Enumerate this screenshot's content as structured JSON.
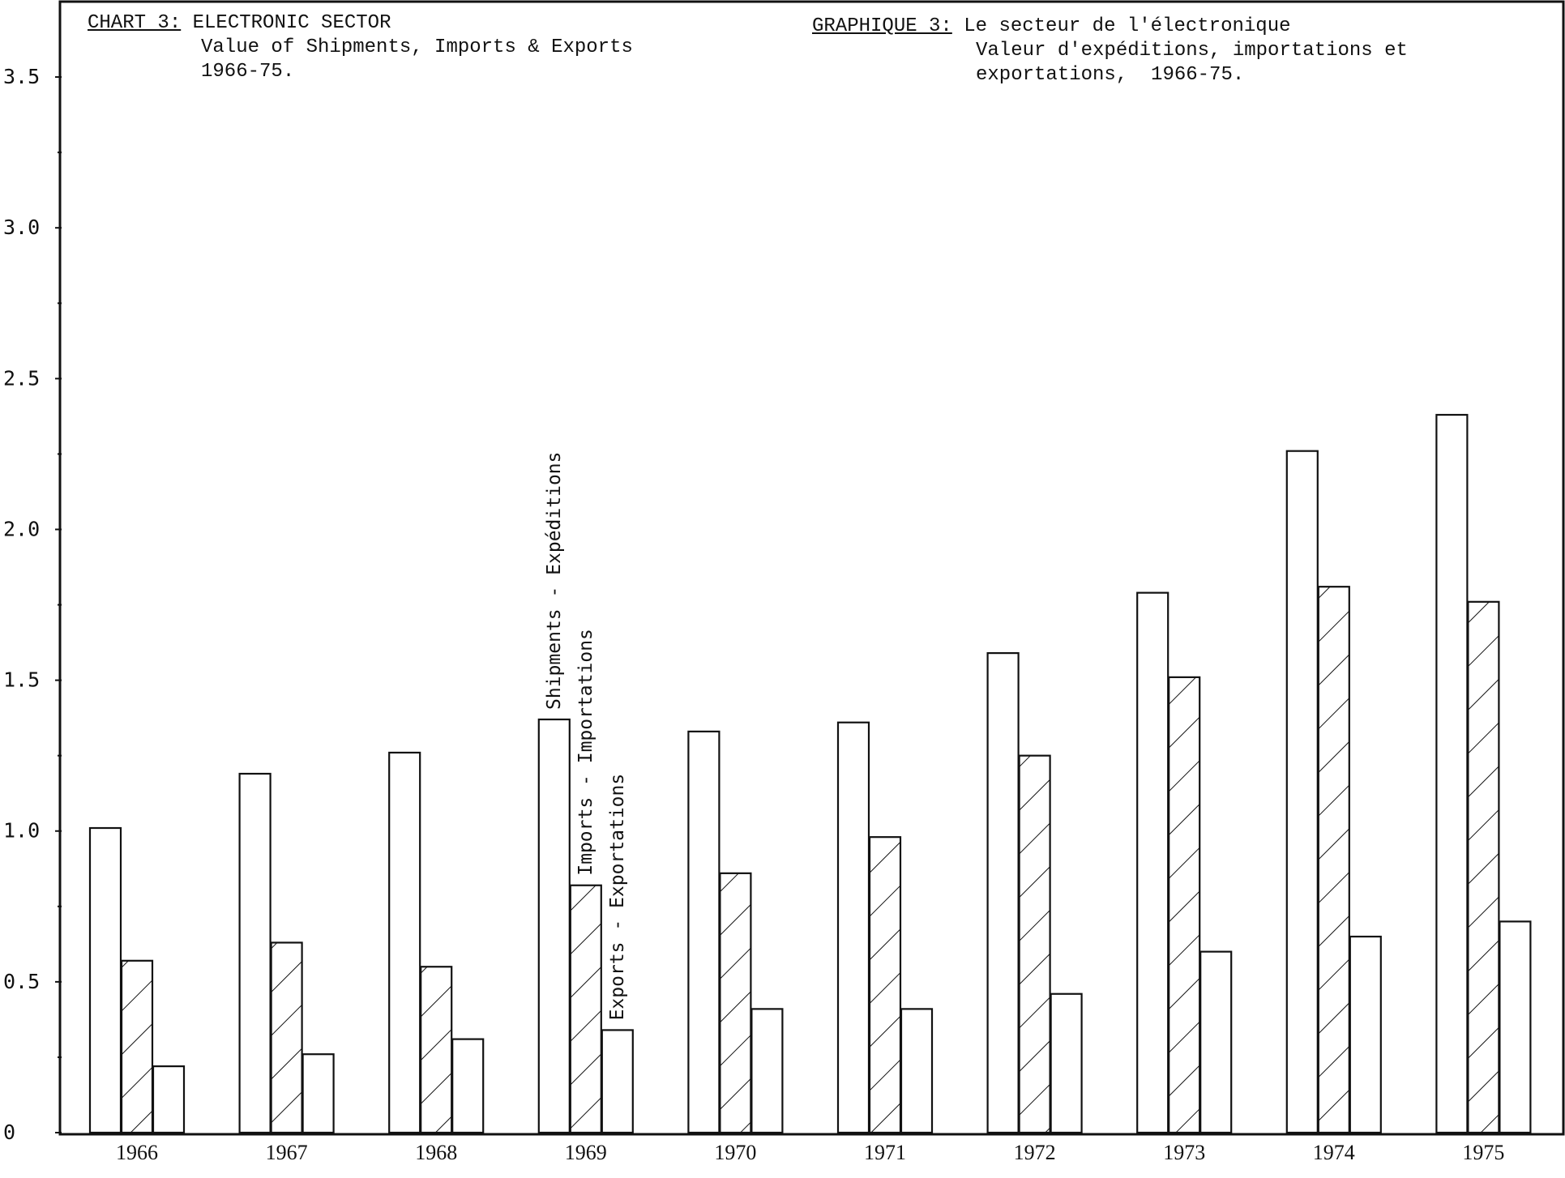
{
  "chart_data": {
    "type": "bar",
    "title_en": {
      "label": "CHART 3:",
      "lines": [
        "ELECTRONIC SECTOR",
        "Value of Shipments, Imports & Exports",
        "1966-75."
      ]
    },
    "title_fr": {
      "label": "GRAPHIQUE 3:",
      "lines": [
        "Le secteur de l'électronique",
        "Valeur d'expéditions, importations et",
        "exportations,  1966-75."
      ]
    },
    "xlabel": "",
    "ylabel": "",
    "ylim": [
      0,
      3.75
    ],
    "y_ticks": [
      "0",
      "0.5",
      "1.0",
      "1.5",
      "2.0",
      "2.5",
      "3.0",
      "3.5"
    ],
    "y_tick_values": [
      0,
      0.5,
      1.0,
      1.5,
      2.0,
      2.5,
      3.0,
      3.5
    ],
    "categories": [
      "1966",
      "1967",
      "1968",
      "1969",
      "1970",
      "1971",
      "1972",
      "1973",
      "1974",
      "1975"
    ],
    "series": [
      {
        "name": "Shipments - Expéditions",
        "fill": "plain",
        "values": [
          1.01,
          1.19,
          1.26,
          1.37,
          1.33,
          1.36,
          1.59,
          1.79,
          2.26,
          2.38
        ]
      },
      {
        "name": "Imports - Importations",
        "fill": "hatched",
        "values": [
          0.57,
          0.63,
          0.55,
          0.82,
          0.86,
          0.98,
          1.25,
          1.51,
          1.81,
          1.76
        ]
      },
      {
        "name": "Exports - Exportations",
        "fill": "plain",
        "values": [
          0.22,
          0.26,
          0.31,
          0.34,
          0.41,
          0.41,
          0.46,
          0.6,
          0.65,
          0.7
        ]
      }
    ],
    "series_label_category": "1969",
    "grid": false,
    "colors": {
      "ink": "#111111",
      "background": "#ffffff"
    }
  }
}
